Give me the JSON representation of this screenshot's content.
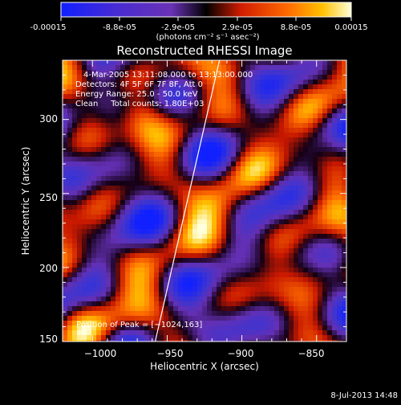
{
  "colorbar": {
    "tick_labels": [
      "-0.00015",
      "-8.8e-05",
      "-2.9e-05",
      "2.9e-05",
      "8.8e-05",
      "0.00015"
    ],
    "unit_label": "(photons cm⁻² s⁻¹ asec⁻²)",
    "range": [
      -0.00015,
      0.00015
    ]
  },
  "chart_data": {
    "type": "heatmap",
    "title": "Reconstructed RHESSI Image",
    "xlabel": "Heliocentric X (arcsec)",
    "ylabel": "Heliocentric Y (arcsec)",
    "xlim": [
      -1020,
      -830
    ],
    "ylim": [
      150,
      340
    ],
    "x_ticks": [
      -1000,
      -950,
      -900,
      -850
    ],
    "y_ticks": [
      150,
      200,
      250,
      300
    ],
    "x_tick_labels": [
      "−1000",
      "−950",
      "−900",
      "−850"
    ],
    "y_tick_labels": [
      "150",
      "200",
      "250",
      "300"
    ],
    "annotations": [
      "4-Mar-2005 13:11:08.000 to 13:13:00.000",
      "Detectors: 4F 5F 6F 7F 8F, Att 0",
      "Energy Range: 25.0 - 50.0 keV",
      "Clean     Total counts: 1.80E+03"
    ],
    "peak_label": "Position of Peak = [−1024,163]",
    "limb_curve": [
      [
        -958,
        150
      ],
      [
        -935,
        250
      ],
      [
        -915,
        340
      ]
    ],
    "grid": false,
    "colormap": "blue-purple-black-red-yellow-white"
  },
  "footer": {
    "date": "8-Jul-2013 14:48"
  }
}
